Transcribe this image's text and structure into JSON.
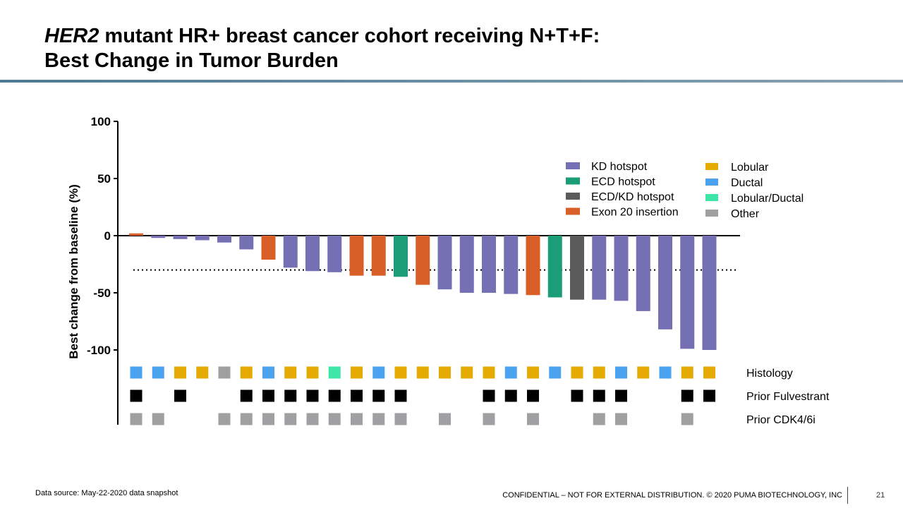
{
  "slide": {
    "title_italic": "HER2",
    "title_rest": " mutant HR+ breast cancer cohort receiving N+T+F:",
    "title_line2": "Best Change in Tumor Burden",
    "source": "Data source: May-22-2020 data snapshot",
    "confidential": "CONFIDENTIAL – NOT FOR EXTERNAL DISTRIBUTION. © 2020 PUMA BIOTECHNOLOGY, INC",
    "page_number": "21"
  },
  "chart_data": {
    "type": "bar",
    "ylabel": "Best change from baseline (%)",
    "ylim": [
      -100,
      100
    ],
    "yticks": [
      100,
      50,
      0,
      -50,
      -100
    ],
    "reference_line": -30,
    "mutation_legend": [
      {
        "key": "KD",
        "label": "KD hotspot",
        "color": "#7570b3"
      },
      {
        "key": "ECD",
        "label": "ECD hotspot",
        "color": "#1b9e77"
      },
      {
        "key": "ECDKD",
        "label": "ECD/KD hotspot",
        "color": "#5b5b5b"
      },
      {
        "key": "EX20",
        "label": "Exon 20 insertion",
        "color": "#d95f28"
      }
    ],
    "histology_legend": [
      {
        "key": "L",
        "label": "Lobular",
        "color": "#e6ab02"
      },
      {
        "key": "D",
        "label": "Ductal",
        "color": "#4ba3f0"
      },
      {
        "key": "LD",
        "label": "Lobular/Ductal",
        "color": "#3ee6a8"
      },
      {
        "key": "O",
        "label": "Other",
        "color": "#a0a0a2"
      }
    ],
    "values": [
      2,
      -2,
      -3,
      -4,
      -6,
      -12,
      -21,
      -28,
      -31,
      -32,
      -35,
      -35,
      -36,
      -43,
      -47,
      -50,
      -50,
      -51,
      -52,
      -54,
      -56,
      -56,
      -57,
      -66,
      -82,
      -99,
      -100
    ],
    "mutation": [
      "EX20",
      "KD",
      "KD",
      "KD",
      "KD",
      "KD",
      "EX20",
      "KD",
      "KD",
      "KD",
      "EX20",
      "EX20",
      "ECD",
      "EX20",
      "KD",
      "KD",
      "KD",
      "KD",
      "EX20",
      "ECD",
      "ECDKD",
      "KD",
      "KD",
      "KD",
      "KD",
      "KD",
      "KD"
    ],
    "histology": [
      "D",
      "D",
      "L",
      "L",
      "O",
      "L",
      "D",
      "L",
      "L",
      "LD",
      "L",
      "D",
      "L",
      "L",
      "L",
      "L",
      "L",
      "D",
      "L",
      "D",
      "L",
      "L",
      "D",
      "L",
      "D",
      "L",
      "L"
    ],
    "prior_fulvestrant": [
      1,
      0,
      1,
      0,
      0,
      1,
      1,
      1,
      1,
      1,
      1,
      1,
      1,
      0,
      0,
      0,
      1,
      1,
      1,
      0,
      1,
      1,
      1,
      0,
      0,
      1,
      1
    ],
    "prior_cdk46i": [
      1,
      1,
      0,
      0,
      1,
      1,
      1,
      1,
      1,
      1,
      1,
      1,
      1,
      0,
      1,
      0,
      1,
      0,
      1,
      0,
      0,
      1,
      1,
      0,
      0,
      1,
      0
    ],
    "row_labels": {
      "histology": "Histology",
      "fulvestrant": "Prior Fulvestrant",
      "cdk": "Prior CDK4/6i"
    },
    "fulvestrant_color": "#000000",
    "cdk_color": "#a0a0a2"
  }
}
